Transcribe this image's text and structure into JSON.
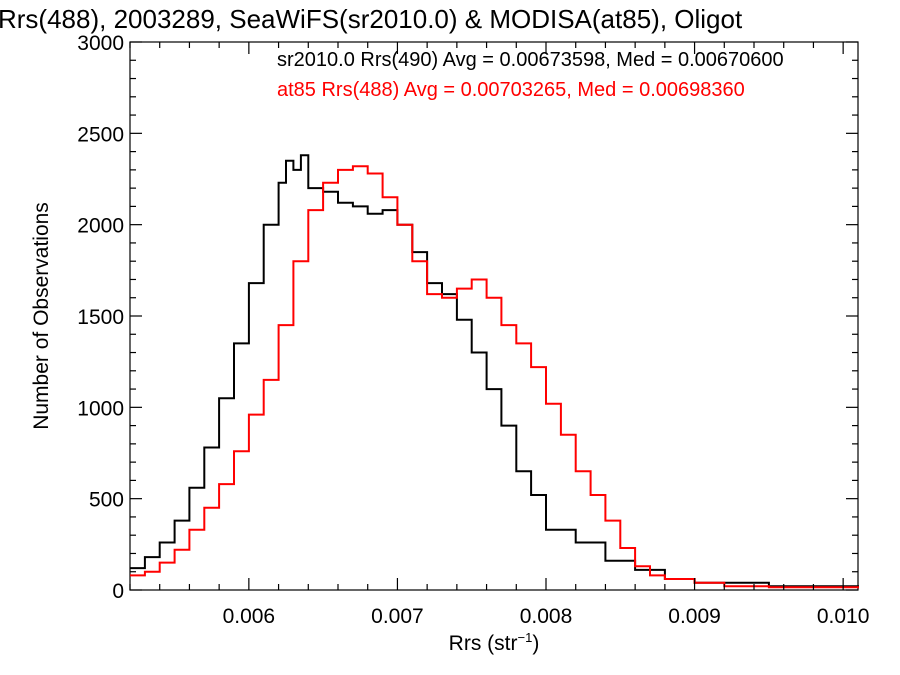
{
  "chart_data": {
    "type": "line",
    "title": "Rrs(488), 2003289, SeaWiFS(sr2010.0) & MODISA(at85), Oligot",
    "xlabel": "Rrs (str",
    "xlabel_sup": "−1",
    "xlabel_close": ")",
    "ylabel": "Number of Observations",
    "xlim": [
      0.0052,
      0.0101
    ],
    "ylim": [
      0,
      3000
    ],
    "x_ticks": [
      0.006,
      0.007,
      0.008,
      0.009,
      0.01
    ],
    "x_tick_labels": [
      "0.006",
      "0.007",
      "0.008",
      "0.009",
      "0.010"
    ],
    "y_ticks": [
      0,
      500,
      1000,
      1500,
      2000,
      2500,
      3000
    ],
    "y_tick_labels": [
      "0",
      "500",
      "1000",
      "1500",
      "2000",
      "2500",
      "3000"
    ],
    "grid": false,
    "step": true,
    "series": [
      {
        "name": "sr2010.0 Rrs(490) Avg = 0.00673598, Med = 0.00670600",
        "color": "#000000",
        "x": [
          0.0052,
          0.0053,
          0.0054,
          0.0055,
          0.0056,
          0.0057,
          0.0058,
          0.0059,
          0.006,
          0.0061,
          0.0062,
          0.00625,
          0.0063,
          0.00635,
          0.0064,
          0.0065,
          0.0066,
          0.0067,
          0.0068,
          0.0069,
          0.007,
          0.0071,
          0.0072,
          0.0073,
          0.0074,
          0.0075,
          0.0076,
          0.0077,
          0.0078,
          0.0079,
          0.008,
          0.0082,
          0.0084,
          0.0086,
          0.0088,
          0.009,
          0.0095,
          0.0101
        ],
        "y": [
          120,
          180,
          260,
          380,
          560,
          780,
          1050,
          1350,
          1680,
          2000,
          2230,
          2350,
          2300,
          2380,
          2200,
          2180,
          2120,
          2100,
          2060,
          2080,
          2000,
          1850,
          1680,
          1620,
          1480,
          1300,
          1100,
          900,
          650,
          520,
          330,
          260,
          160,
          110,
          60,
          40,
          20,
          10
        ]
      },
      {
        "name": "at85 Rrs(488) Avg = 0.00703265, Med = 0.00698360",
        "color": "#ff0000",
        "x": [
          0.0052,
          0.0053,
          0.0054,
          0.0055,
          0.0056,
          0.0057,
          0.0058,
          0.0059,
          0.006,
          0.0061,
          0.0062,
          0.0063,
          0.0064,
          0.0065,
          0.0066,
          0.0067,
          0.0068,
          0.0069,
          0.007,
          0.0071,
          0.0072,
          0.0073,
          0.0074,
          0.0075,
          0.0076,
          0.0077,
          0.0078,
          0.0079,
          0.008,
          0.0081,
          0.0082,
          0.0083,
          0.0084,
          0.0085,
          0.0086,
          0.0087,
          0.0088,
          0.009,
          0.0092,
          0.0095,
          0.0101
        ],
        "y": [
          80,
          100,
          150,
          220,
          330,
          450,
          580,
          760,
          960,
          1150,
          1450,
          1800,
          2080,
          2230,
          2300,
          2320,
          2280,
          2150,
          2000,
          1800,
          1620,
          1600,
          1650,
          1700,
          1600,
          1450,
          1350,
          1220,
          1020,
          850,
          650,
          520,
          380,
          230,
          130,
          80,
          60,
          40,
          20,
          15,
          10
        ]
      }
    ]
  }
}
